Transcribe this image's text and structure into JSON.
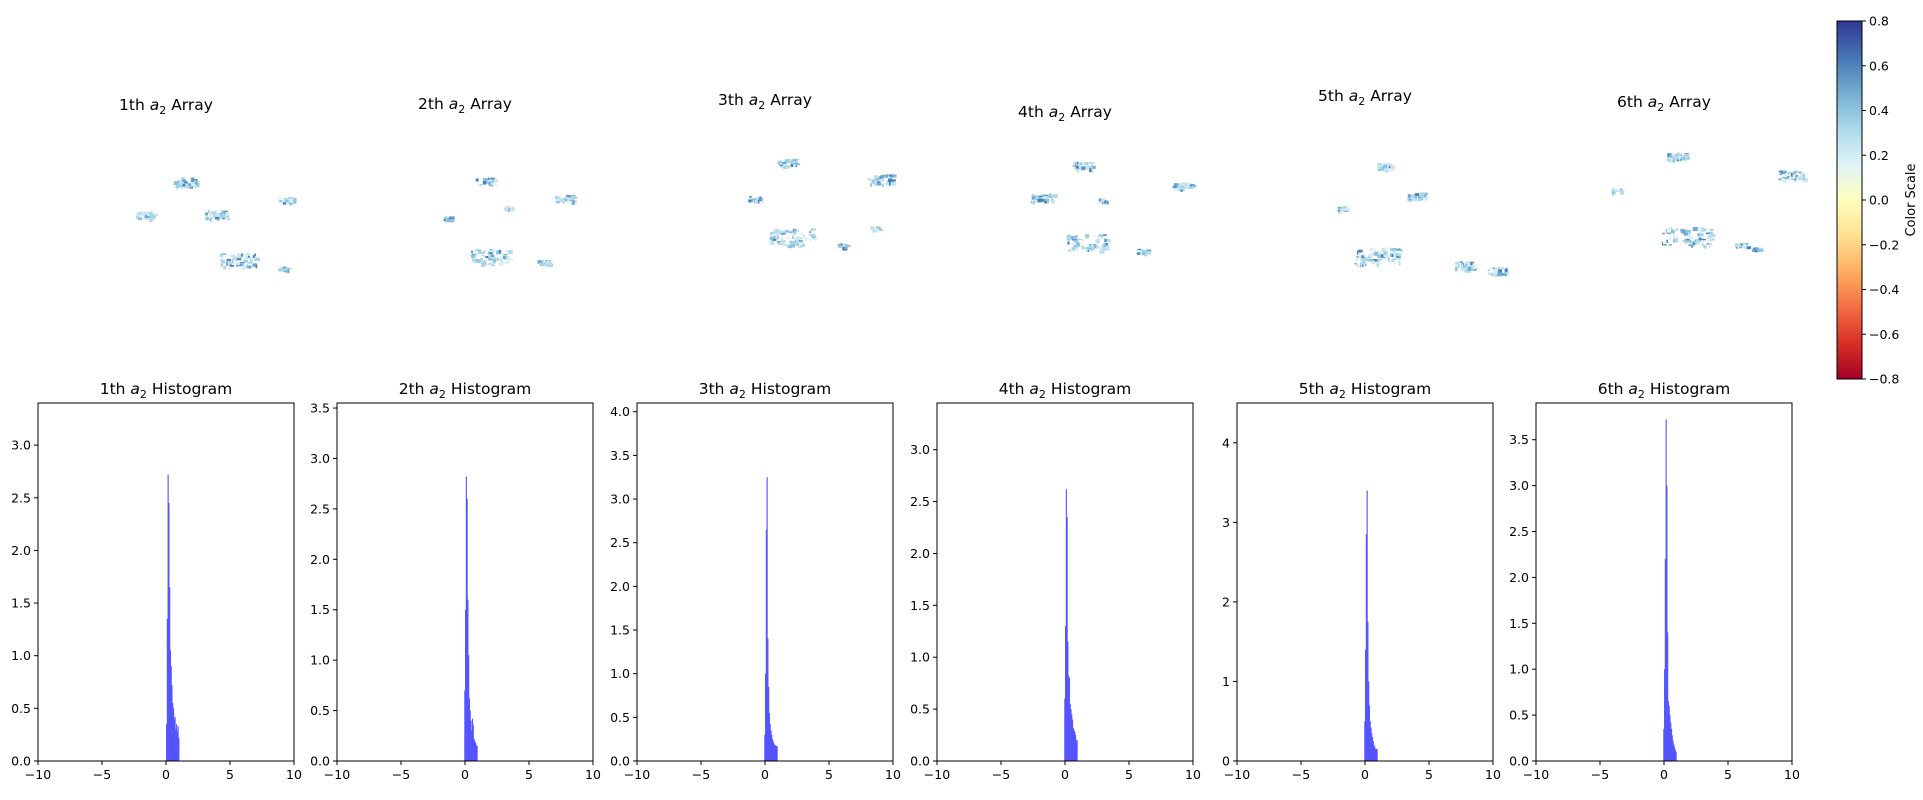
{
  "colors": {
    "bar": "#4b4bff",
    "cmap": [
      "#a50026",
      "#d73027",
      "#f46d43",
      "#fdae61",
      "#fee090",
      "#ffffbf",
      "#e0f3f8",
      "#abd9e9",
      "#74add1",
      "#4575b4",
      "#313695"
    ]
  },
  "colorbar": {
    "label": "Color Scale",
    "range": [
      -0.8,
      0.8
    ],
    "ticks": [
      "0.8",
      "0.6",
      "0.4",
      "0.2",
      "0.0",
      "−0.2",
      "−0.4",
      "−0.6",
      "−0.8"
    ]
  },
  "arrays": [
    {
      "prefix": "1th",
      "sym": "a",
      "sub": "2",
      "suffix": "Array"
    },
    {
      "prefix": "2th",
      "sym": "a",
      "sub": "2",
      "suffix": "Array"
    },
    {
      "prefix": "3th",
      "sym": "a",
      "sub": "2",
      "suffix": "Array"
    },
    {
      "prefix": "4th",
      "sym": "a",
      "sub": "2",
      "suffix": "Array"
    },
    {
      "prefix": "5th",
      "sym": "a",
      "sub": "2",
      "suffix": "Array"
    },
    {
      "prefix": "6th",
      "sym": "a",
      "sub": "2",
      "suffix": "Array"
    }
  ],
  "chart_data": [
    {
      "type": "bar",
      "title": {
        "prefix": "1th",
        "sym": "a",
        "sub": "2",
        "suffix": "Histogram"
      },
      "xlim": [
        -10,
        10
      ],
      "xticks": [
        "−10",
        "−5",
        "0",
        "5",
        "10"
      ],
      "ylim": [
        0,
        3.4
      ],
      "yticks": [
        "0.0",
        "0.5",
        "1.0",
        "1.5",
        "2.0",
        "2.5",
        "3.0"
      ],
      "yvals": [
        0,
        0.5,
        1,
        1.5,
        2,
        2.5,
        3
      ],
      "bins": [
        [
          0,
          0.35
        ],
        [
          0.06,
          1.35
        ],
        [
          0.12,
          2.72
        ],
        [
          0.18,
          2.45
        ],
        [
          0.24,
          1.65
        ],
        [
          0.3,
          1.05
        ],
        [
          0.36,
          0.9
        ],
        [
          0.42,
          0.72
        ],
        [
          0.48,
          0.55
        ],
        [
          0.54,
          0.5
        ],
        [
          0.6,
          0.4
        ],
        [
          0.66,
          0.42
        ],
        [
          0.72,
          0.3
        ],
        [
          0.78,
          0.35
        ],
        [
          0.84,
          0.28
        ],
        [
          0.9,
          0.33
        ],
        [
          0.96,
          0.22
        ]
      ]
    },
    {
      "type": "bar",
      "title": {
        "prefix": "2th",
        "sym": "a",
        "sub": "2",
        "suffix": "Histogram"
      },
      "xlim": [
        -10,
        10
      ],
      "xticks": [
        "−10",
        "−5",
        "0",
        "5",
        "10"
      ],
      "ylim": [
        0,
        3.55
      ],
      "yticks": [
        "0.0",
        "0.5",
        "1.0",
        "1.5",
        "2.0",
        "2.5",
        "3.0",
        "3.5"
      ],
      "yvals": [
        0,
        0.5,
        1,
        1.5,
        2,
        2.5,
        3,
        3.5
      ],
      "bins": [
        [
          -0.06,
          0.7
        ],
        [
          0,
          1.5
        ],
        [
          0.06,
          2.82
        ],
        [
          0.12,
          2.6
        ],
        [
          0.18,
          1.6
        ],
        [
          0.24,
          1.05
        ],
        [
          0.3,
          0.62
        ],
        [
          0.36,
          0.5
        ],
        [
          0.42,
          0.4
        ],
        [
          0.48,
          0.3
        ],
        [
          0.54,
          0.42
        ],
        [
          0.6,
          0.36
        ],
        [
          0.66,
          0.22
        ],
        [
          0.72,
          0.2
        ],
        [
          0.78,
          0.18
        ],
        [
          0.84,
          0.16
        ],
        [
          0.9,
          0.15
        ]
      ]
    },
    {
      "type": "bar",
      "title": {
        "prefix": "3th",
        "sym": "a",
        "sub": "2",
        "suffix": "Histogram"
      },
      "xlim": [
        -10,
        10
      ],
      "xticks": [
        "−10",
        "−5",
        "0",
        "5",
        "10"
      ],
      "ylim": [
        0,
        4.1
      ],
      "yticks": [
        "0.0",
        "0.5",
        "1.0",
        "1.5",
        "2.0",
        "2.5",
        "3.0",
        "3.5",
        "4.0"
      ],
      "yvals": [
        0,
        0.5,
        1,
        1.5,
        2,
        2.5,
        3,
        3.5,
        4
      ],
      "bins": [
        [
          -0.06,
          0.3
        ],
        [
          0,
          1.0
        ],
        [
          0.06,
          2.65
        ],
        [
          0.12,
          3.25
        ],
        [
          0.18,
          1.4
        ],
        [
          0.24,
          0.85
        ],
        [
          0.3,
          0.55
        ],
        [
          0.36,
          0.42
        ],
        [
          0.42,
          0.35
        ],
        [
          0.48,
          0.3
        ],
        [
          0.54,
          0.25
        ],
        [
          0.6,
          0.22
        ],
        [
          0.66,
          0.2
        ],
        [
          0.72,
          0.18
        ],
        [
          0.78,
          0.18
        ],
        [
          0.84,
          0.17
        ],
        [
          0.9,
          0.17
        ]
      ]
    },
    {
      "type": "bar",
      "title": {
        "prefix": "4th",
        "sym": "a",
        "sub": "2",
        "suffix": "Histogram"
      },
      "xlim": [
        -10,
        10
      ],
      "xticks": [
        "−10",
        "−5",
        "0",
        "5",
        "10"
      ],
      "ylim": [
        0,
        3.45
      ],
      "yticks": [
        "0.0",
        "0.5",
        "1.0",
        "1.5",
        "2.0",
        "2.5",
        "3.0"
      ],
      "yvals": [
        0,
        0.5,
        1,
        1.5,
        2,
        2.5,
        3
      ],
      "bins": [
        [
          -0.06,
          0.6
        ],
        [
          0,
          1.3
        ],
        [
          0.06,
          2.62
        ],
        [
          0.12,
          2.35
        ],
        [
          0.18,
          1.15
        ],
        [
          0.24,
          0.82
        ],
        [
          0.3,
          0.8
        ],
        [
          0.36,
          0.55
        ],
        [
          0.42,
          0.5
        ],
        [
          0.48,
          0.45
        ],
        [
          0.54,
          0.4
        ],
        [
          0.6,
          0.32
        ],
        [
          0.66,
          0.3
        ],
        [
          0.72,
          0.28
        ],
        [
          0.78,
          0.25
        ],
        [
          0.84,
          0.2
        ],
        [
          0.9,
          0.2
        ]
      ]
    },
    {
      "type": "bar",
      "title": {
        "prefix": "5th",
        "sym": "a",
        "sub": "2",
        "suffix": "Histogram"
      },
      "xlim": [
        -10,
        10
      ],
      "xticks": [
        "−10",
        "−5",
        "0",
        "5",
        "10"
      ],
      "ylim": [
        0,
        4.5
      ],
      "yticks": [
        "0",
        "1",
        "2",
        "3",
        "4"
      ],
      "yvals": [
        0,
        1,
        2,
        3,
        4
      ],
      "bins": [
        [
          -0.06,
          0.5
        ],
        [
          0,
          1.4
        ],
        [
          0.06,
          2.85
        ],
        [
          0.12,
          3.4
        ],
        [
          0.18,
          1.75
        ],
        [
          0.24,
          1.0
        ],
        [
          0.3,
          0.7
        ],
        [
          0.36,
          0.5
        ],
        [
          0.42,
          0.42
        ],
        [
          0.48,
          0.35
        ],
        [
          0.54,
          0.3
        ],
        [
          0.6,
          0.25
        ],
        [
          0.66,
          0.2
        ],
        [
          0.72,
          0.18
        ],
        [
          0.78,
          0.15
        ],
        [
          0.84,
          0.15
        ],
        [
          0.9,
          0.15
        ]
      ]
    },
    {
      "type": "bar",
      "title": {
        "prefix": "6th",
        "sym": "a",
        "sub": "2",
        "suffix": "Histogram"
      },
      "xlim": [
        -10,
        10
      ],
      "xticks": [
        "−10",
        "−5",
        "0",
        "5",
        "10"
      ],
      "ylim": [
        0,
        3.9
      ],
      "yticks": [
        "0.0",
        "0.5",
        "1.0",
        "1.5",
        "2.0",
        "2.5",
        "3.0",
        "3.5"
      ],
      "yvals": [
        0,
        0.5,
        1,
        1.5,
        2,
        2.5,
        3,
        3.5
      ],
      "bins": [
        [
          -0.06,
          0.35
        ],
        [
          0,
          1.0
        ],
        [
          0.06,
          2.2
        ],
        [
          0.12,
          3.72
        ],
        [
          0.18,
          3.0
        ],
        [
          0.24,
          1.4
        ],
        [
          0.3,
          0.65
        ],
        [
          0.36,
          0.6
        ],
        [
          0.42,
          0.5
        ],
        [
          0.48,
          0.42
        ],
        [
          0.54,
          0.35
        ],
        [
          0.6,
          0.28
        ],
        [
          0.66,
          0.22
        ],
        [
          0.72,
          0.18
        ],
        [
          0.78,
          0.15
        ],
        [
          0.84,
          0.12
        ],
        [
          0.9,
          0.1
        ]
      ]
    }
  ]
}
